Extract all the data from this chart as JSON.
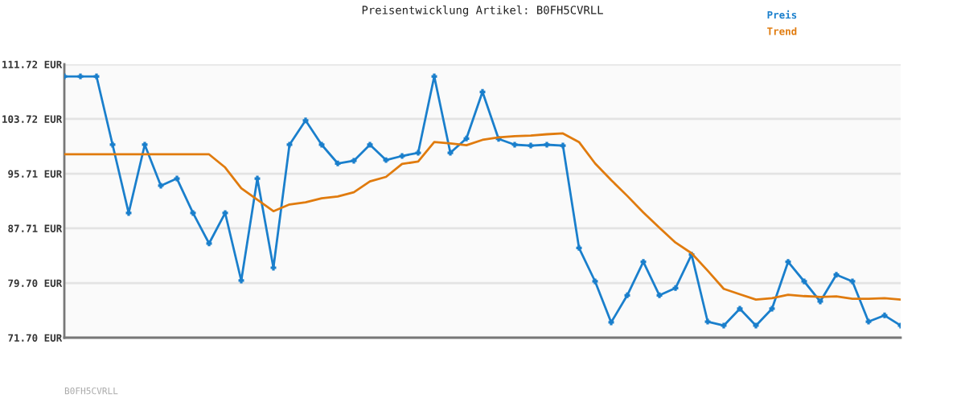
{
  "chart_data": {
    "type": "line",
    "title": "Preisentwicklung Artikel: B0FH5CVRLL",
    "categories": [
      null,
      null,
      null,
      null,
      null,
      null,
      null,
      null,
      null,
      null,
      null,
      null,
      null,
      null,
      null,
      null,
      null,
      null,
      null,
      null,
      null,
      null,
      null,
      null,
      null,
      null,
      null,
      null,
      null,
      null,
      null,
      null,
      null,
      null,
      null,
      null,
      null,
      null,
      null,
      null,
      null,
      null,
      null,
      null,
      null,
      null,
      null,
      null,
      null,
      null,
      null,
      null,
      null
    ],
    "series": [
      {
        "name": "Preis",
        "color": "#1a7fcc",
        "marker": "cross",
        "values": [
          109.95,
          109.95,
          109.95,
          99.95,
          89.95,
          99.95,
          93.95,
          95.0,
          89.95,
          85.5,
          89.95,
          80.06,
          95.0,
          81.94,
          99.95,
          103.5,
          99.95,
          97.21,
          97.6,
          99.95,
          97.7,
          98.3,
          98.77,
          109.95,
          98.77,
          100.86,
          107.68,
          100.81,
          99.95,
          99.83,
          99.95,
          99.83,
          84.85,
          79.94,
          73.94,
          77.9,
          82.8,
          77.9,
          78.96,
          83.86,
          74.05,
          73.47,
          75.94,
          73.47,
          75.94,
          82.8,
          79.94,
          77.0,
          80.92,
          79.94,
          74.05,
          74.96,
          73.47
        ]
      },
      {
        "name": "Trend",
        "color": "#e07b0e",
        "marker": "none",
        "values": [
          98.54,
          98.54,
          98.54,
          98.54,
          98.54,
          98.54,
          98.54,
          98.54,
          98.54,
          98.54,
          96.62,
          93.59,
          91.9,
          90.22,
          91.2,
          91.51,
          92.1,
          92.38,
          93.0,
          94.57,
          95.24,
          97.13,
          97.48,
          100.34,
          100.15,
          99.87,
          100.66,
          101.01,
          101.21,
          101.28,
          101.48,
          101.6,
          100.34,
          97.21,
          94.77,
          92.46,
          90.03,
          87.79,
          85.63,
          84.06,
          81.51,
          78.85,
          78.06,
          77.27,
          77.47,
          77.98,
          77.79,
          77.67,
          77.74,
          77.39,
          77.39,
          77.47,
          77.27
        ]
      }
    ],
    "ylim": [
      71.7,
      111.72
    ],
    "yticks": [
      {
        "value": 71.7,
        "label": "71.70 EUR"
      },
      {
        "value": 79.7,
        "label": "79.70 EUR"
      },
      {
        "value": 87.71,
        "label": "87.71 EUR"
      },
      {
        "value": 95.71,
        "label": "95.71 EUR"
      },
      {
        "value": 103.72,
        "label": "103.72 EUR"
      },
      {
        "value": 111.72,
        "label": "111.72 EUR"
      }
    ],
    "grid": "y",
    "legend": "top right",
    "line_style": "solid",
    "annotations": [
      "B0FH5CVRLL"
    ]
  }
}
